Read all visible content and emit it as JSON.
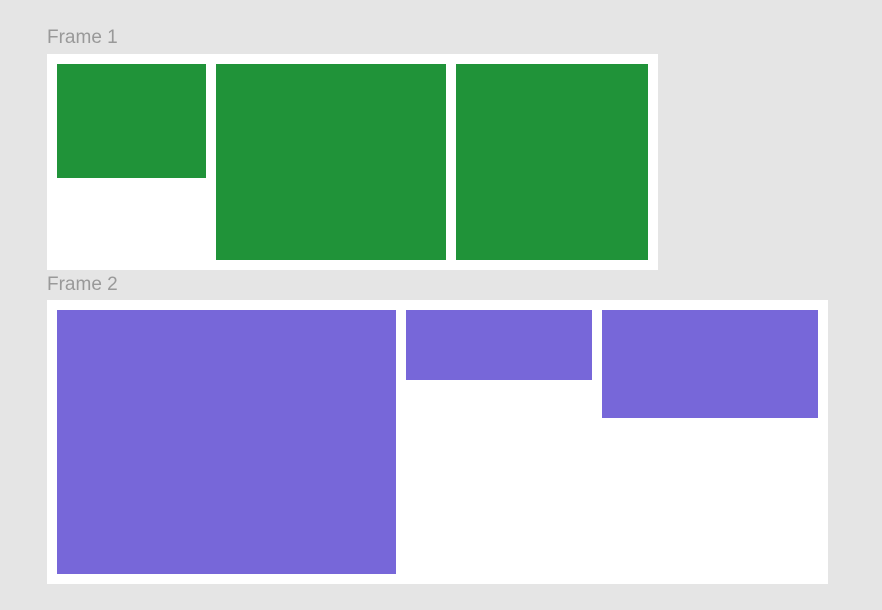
{
  "colors": {
    "canvas_background": "#e5e5e5",
    "frame_background": "#ffffff",
    "label_text": "#999999",
    "frame1_fill": "#209339",
    "frame2_fill": "#7767d9"
  },
  "frames": [
    {
      "label": "Frame 1",
      "fill": "#209339",
      "rectangle_count": 3
    },
    {
      "label": "Frame 2",
      "fill": "#7767d9",
      "rectangle_count": 3
    }
  ]
}
